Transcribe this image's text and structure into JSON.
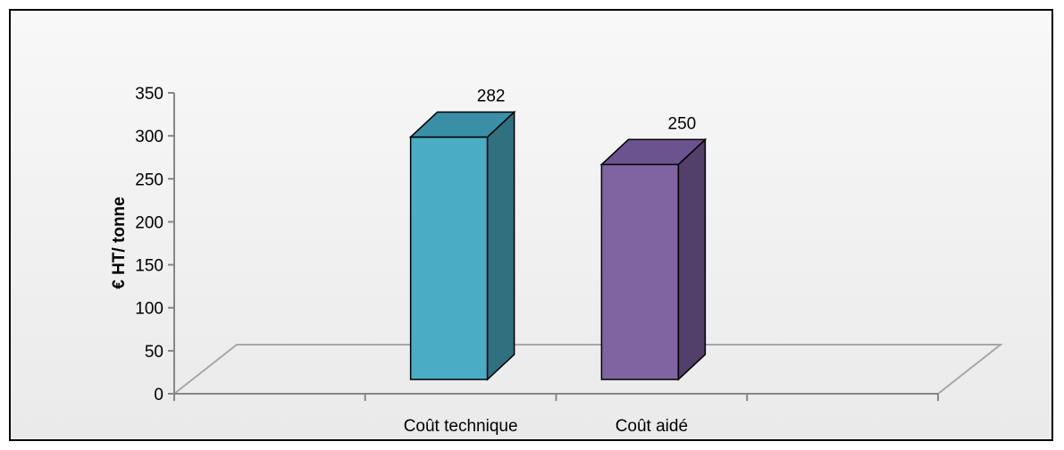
{
  "chart_data": {
    "type": "bar",
    "categories": [
      "Coût technique",
      "Coût aidé"
    ],
    "values": [
      282,
      250
    ],
    "data_labels": [
      "282",
      "250"
    ],
    "title": "",
    "xlabel": "",
    "ylabel": "€ HT/ tonne",
    "ylim": [
      0,
      350
    ],
    "yticks": [
      0,
      50,
      100,
      150,
      200,
      250,
      300,
      350
    ],
    "ytick_labels": [
      "0",
      "50",
      "100",
      "150",
      "200",
      "250",
      "300",
      "350"
    ],
    "colors": {
      "Coût technique": {
        "front": "#4bacc6",
        "side": "#31707f",
        "top": "#3a8fa6"
      },
      "Coût aidé": {
        "front": "#8064a2",
        "side": "#523f6a",
        "top": "#6b5390"
      }
    },
    "style": "3d-column",
    "grid": false,
    "legend": "none"
  }
}
